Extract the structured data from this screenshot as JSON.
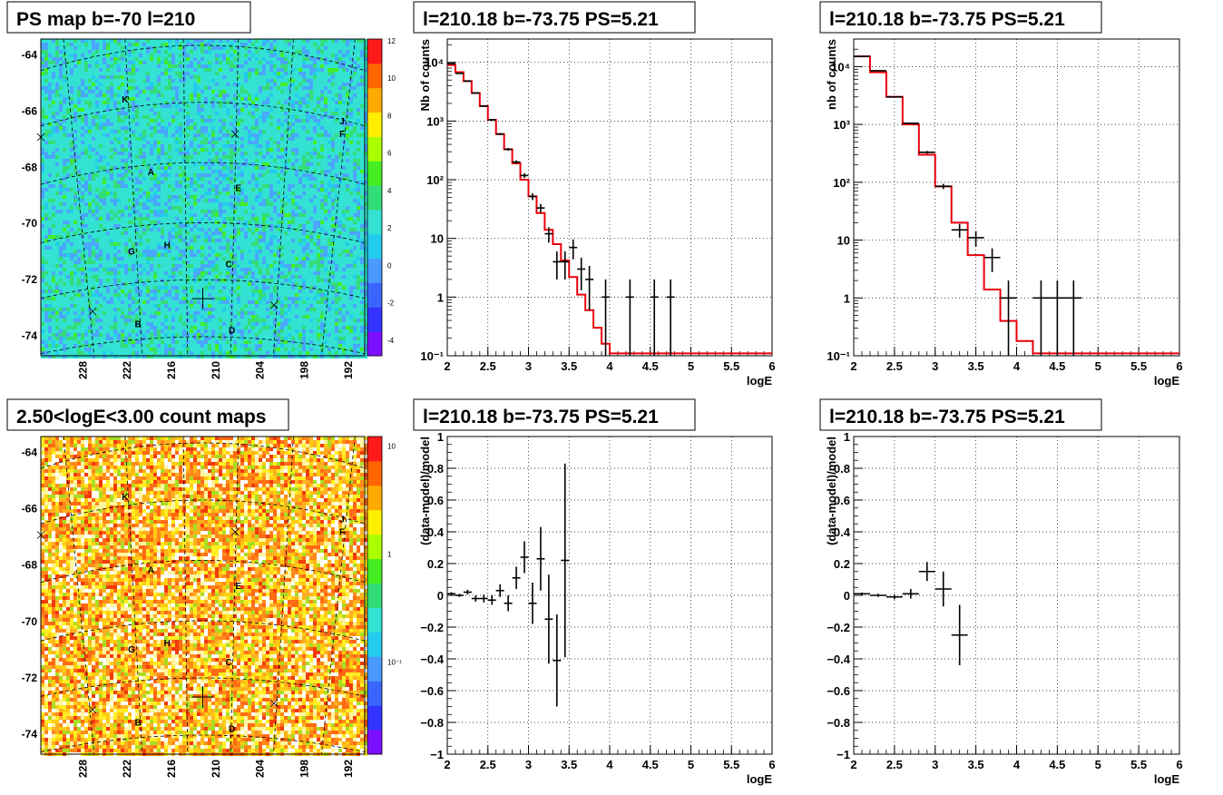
{
  "colors": {
    "model_line": "#e8000b",
    "data_marker": "#000000",
    "background": "#ffffff"
  },
  "maps": [
    {
      "title": "PS map b=-70 l=210",
      "palette": "ps",
      "colorbar_ticks": [
        "12",
        "10",
        "8",
        "6",
        "4",
        "2",
        "0",
        "-2",
        "-4"
      ],
      "y_ticks": [
        "-64",
        "-66",
        "-68",
        "-70",
        "-72",
        "-74"
      ],
      "x_ticks": [
        "228",
        "222",
        "216",
        "210",
        "204",
        "198",
        "192"
      ]
    },
    {
      "title": "2.50<logE<3.00 count maps",
      "palette": "counts",
      "colorbar_ticks": [
        "10",
        "1",
        "10⁻¹"
      ],
      "y_ticks": [
        "-64",
        "-66",
        "-68",
        "-70",
        "-72",
        "-74"
      ],
      "x_ticks": [
        "228",
        "222",
        "216",
        "210",
        "204",
        "198",
        "192"
      ]
    }
  ],
  "map_source_labels": [
    "K",
    "J",
    "F",
    "A",
    "E",
    "G",
    "H",
    "C",
    "B",
    "D"
  ],
  "chart_data": [
    {
      "type": "line",
      "title": "l=210.18 b=-73.75 PS=5.21",
      "xlabel": "logE",
      "ylabel": "Nb of counts",
      "y_scale": "log",
      "xlim": [
        2,
        6
      ],
      "ylim": [
        0.1,
        25000
      ],
      "grid": true,
      "x_tick_labels": [
        "2",
        "2.5",
        "3",
        "3.5",
        "4",
        "4.5",
        "5",
        "5.5",
        "6"
      ],
      "y_tick_labels": [
        "10⁻¹",
        "1",
        "10",
        "10²",
        "10³",
        "10⁴"
      ],
      "model_step": {
        "edges": [
          2.0,
          2.1,
          2.2,
          2.3,
          2.4,
          2.5,
          2.6,
          2.7,
          2.8,
          2.9,
          3.0,
          3.1,
          3.2,
          3.3,
          3.4,
          3.5,
          3.6,
          3.7,
          3.8,
          3.9,
          4.0,
          4.1,
          6.0
        ],
        "values": [
          9000,
          6800,
          4800,
          3000,
          1800,
          1050,
          600,
          330,
          190,
          100,
          52,
          27,
          14,
          8,
          4.2,
          2.2,
          1.1,
          0.6,
          0.3,
          0.16,
          0.11,
          0.11
        ]
      },
      "points": [
        {
          "x": 2.05,
          "y": 9500,
          "xerr": 0.05,
          "yerr_lo": 100,
          "yerr_hi": 100
        },
        {
          "x": 2.15,
          "y": 6500,
          "xerr": 0.05,
          "yerr_lo": 80,
          "yerr_hi": 80
        },
        {
          "x": 2.25,
          "y": 4800,
          "xerr": 0.05,
          "yerr_lo": 70,
          "yerr_hi": 70
        },
        {
          "x": 2.35,
          "y": 3000,
          "xerr": 0.05,
          "yerr_lo": 55,
          "yerr_hi": 55
        },
        {
          "x": 2.45,
          "y": 1800,
          "xerr": 0.05,
          "yerr_lo": 42,
          "yerr_hi": 42
        },
        {
          "x": 2.55,
          "y": 1050,
          "xerr": 0.05,
          "yerr_lo": 32,
          "yerr_hi": 32
        },
        {
          "x": 2.65,
          "y": 600,
          "xerr": 0.05,
          "yerr_lo": 24,
          "yerr_hi": 24
        },
        {
          "x": 2.75,
          "y": 330,
          "xerr": 0.05,
          "yerr_lo": 18,
          "yerr_hi": 18
        },
        {
          "x": 2.85,
          "y": 200,
          "xerr": 0.05,
          "yerr_lo": 14,
          "yerr_hi": 14
        },
        {
          "x": 2.95,
          "y": 118,
          "xerr": 0.05,
          "yerr_lo": 11,
          "yerr_hi": 11
        },
        {
          "x": 3.05,
          "y": 52,
          "xerr": 0.05,
          "yerr_lo": 7,
          "yerr_hi": 7
        },
        {
          "x": 3.15,
          "y": 33,
          "xerr": 0.05,
          "yerr_lo": 5.7,
          "yerr_hi": 5.7
        },
        {
          "x": 3.25,
          "y": 12,
          "xerr": 0.05,
          "yerr_lo": 3.5,
          "yerr_hi": 3.5
        },
        {
          "x": 3.35,
          "y": 4,
          "xerr": 0.05,
          "yerr_lo": 2,
          "yerr_hi": 2
        },
        {
          "x": 3.45,
          "y": 4,
          "xerr": 0.05,
          "yerr_lo": 2,
          "yerr_hi": 2
        },
        {
          "x": 3.55,
          "y": 7,
          "xerr": 0.05,
          "yerr_lo": 2.6,
          "yerr_hi": 2.6
        },
        {
          "x": 3.65,
          "y": 3,
          "xerr": 0.05,
          "yerr_lo": 1.7,
          "yerr_hi": 1.7
        },
        {
          "x": 3.75,
          "y": 2,
          "xerr": 0.05,
          "yerr_lo": 1.4,
          "yerr_hi": 1.4
        },
        {
          "x": 3.95,
          "y": 1,
          "xerr": 0.05,
          "yerr_lo": 0.9,
          "yerr_hi": 1
        },
        {
          "x": 4.25,
          "y": 1,
          "xerr": 0.05,
          "yerr_lo": 0.9,
          "yerr_hi": 1
        },
        {
          "x": 4.55,
          "y": 1,
          "xerr": 0.05,
          "yerr_lo": 0.9,
          "yerr_hi": 1
        },
        {
          "x": 4.75,
          "y": 1,
          "xerr": 0.05,
          "yerr_lo": 0.9,
          "yerr_hi": 1
        }
      ]
    },
    {
      "type": "line",
      "title": "l=210.18 b=-73.75 PS=5.21",
      "xlabel": "logE",
      "ylabel": "nb of counts",
      "y_scale": "log",
      "xlim": [
        2,
        6
      ],
      "ylim": [
        0.1,
        30000
      ],
      "grid": true,
      "x_tick_labels": [
        "2",
        "2.5",
        "3",
        "3.5",
        "4",
        "4.5",
        "5",
        "5.5",
        "6"
      ],
      "y_tick_labels": [
        "10⁻¹",
        "1",
        "10",
        "10²",
        "10³",
        "10⁴"
      ],
      "model_step": {
        "edges": [
          2.0,
          2.2,
          2.4,
          2.6,
          2.8,
          3.0,
          3.2,
          3.4,
          3.6,
          3.8,
          4.0,
          4.2,
          6.0
        ],
        "values": [
          15000,
          8000,
          3000,
          1000,
          300,
          85,
          20,
          5.5,
          1.4,
          0.4,
          0.18,
          0.11
        ]
      },
      "points": [
        {
          "x": 2.1,
          "y": 15000,
          "xerr": 0.1,
          "yerr_lo": 120,
          "yerr_hi": 120
        },
        {
          "x": 2.3,
          "y": 8500,
          "xerr": 0.1,
          "yerr_lo": 92,
          "yerr_hi": 92
        },
        {
          "x": 2.5,
          "y": 3000,
          "xerr": 0.1,
          "yerr_lo": 55,
          "yerr_hi": 55
        },
        {
          "x": 2.7,
          "y": 1050,
          "xerr": 0.1,
          "yerr_lo": 32,
          "yerr_hi": 32
        },
        {
          "x": 2.9,
          "y": 330,
          "xerr": 0.1,
          "yerr_lo": 18,
          "yerr_hi": 18
        },
        {
          "x": 3.1,
          "y": 85,
          "xerr": 0.1,
          "yerr_lo": 9,
          "yerr_hi": 9
        },
        {
          "x": 3.3,
          "y": 15,
          "xerr": 0.1,
          "yerr_lo": 4,
          "yerr_hi": 4
        },
        {
          "x": 3.5,
          "y": 11,
          "xerr": 0.1,
          "yerr_lo": 3.3,
          "yerr_hi": 3.3
        },
        {
          "x": 3.7,
          "y": 5,
          "xerr": 0.1,
          "yerr_lo": 2.2,
          "yerr_hi": 2.2
        },
        {
          "x": 3.9,
          "y": 1,
          "xerr": 0.1,
          "yerr_lo": 0.9,
          "yerr_hi": 1
        },
        {
          "x": 4.3,
          "y": 1,
          "xerr": 0.1,
          "yerr_lo": 0.9,
          "yerr_hi": 1
        },
        {
          "x": 4.5,
          "y": 1,
          "xerr": 0.1,
          "yerr_lo": 0.9,
          "yerr_hi": 1
        },
        {
          "x": 4.7,
          "y": 1,
          "xerr": 0.1,
          "yerr_lo": 0.9,
          "yerr_hi": 1
        }
      ]
    },
    {
      "type": "scatter",
      "title": "l=210.18 b=-73.75 PS=5.21",
      "xlabel": "logE",
      "ylabel": "(data-model)/model",
      "y_scale": "linear",
      "xlim": [
        2,
        6
      ],
      "ylim": [
        -1,
        1
      ],
      "grid": true,
      "x_tick_labels": [
        "2",
        "2.5",
        "3",
        "3.5",
        "4",
        "4.5",
        "5",
        "5.5",
        "6"
      ],
      "y_tick_labels": [
        "−1",
        "−0.8",
        "−0.6",
        "−0.4",
        "−0.2",
        "0",
        "0.2",
        "0.4",
        "0.6",
        "0.8",
        "1"
      ],
      "points": [
        {
          "x": 2.05,
          "y": 0.01,
          "xerr": 0.05,
          "yerr": 0.01
        },
        {
          "x": 2.15,
          "y": 0.0,
          "xerr": 0.05,
          "yerr": 0.01
        },
        {
          "x": 2.25,
          "y": 0.02,
          "xerr": 0.05,
          "yerr": 0.015
        },
        {
          "x": 2.35,
          "y": -0.02,
          "xerr": 0.05,
          "yerr": 0.02
        },
        {
          "x": 2.45,
          "y": -0.02,
          "xerr": 0.05,
          "yerr": 0.025
        },
        {
          "x": 2.55,
          "y": -0.03,
          "xerr": 0.05,
          "yerr": 0.03
        },
        {
          "x": 2.65,
          "y": 0.03,
          "xerr": 0.05,
          "yerr": 0.04
        },
        {
          "x": 2.75,
          "y": -0.05,
          "xerr": 0.05,
          "yerr": 0.05
        },
        {
          "x": 2.85,
          "y": 0.11,
          "xerr": 0.05,
          "yerr": 0.07
        },
        {
          "x": 2.95,
          "y": 0.24,
          "xerr": 0.05,
          "yerr": 0.1
        },
        {
          "x": 3.05,
          "y": -0.05,
          "xerr": 0.05,
          "yerr": 0.13
        },
        {
          "x": 3.15,
          "y": 0.23,
          "xerr": 0.05,
          "yerr": 0.2
        },
        {
          "x": 3.25,
          "y": -0.15,
          "xerr": 0.05,
          "yerr": 0.28
        },
        {
          "x": 3.35,
          "y": -0.41,
          "xerr": 0.05,
          "yerr": 0.29
        },
        {
          "x": 3.45,
          "y": 0.22,
          "xerr": 0.05,
          "yerr": 0.61
        }
      ]
    },
    {
      "type": "scatter",
      "title": "l=210.18 b=-73.75 PS=5.21",
      "xlabel": "logE",
      "ylabel": "(data-model)/model",
      "y_scale": "linear",
      "xlim": [
        2,
        6
      ],
      "ylim": [
        -1,
        1
      ],
      "grid": true,
      "x_tick_labels": [
        "2",
        "2.5",
        "3",
        "3.5",
        "4",
        "4.5",
        "5",
        "5.5",
        "6"
      ],
      "y_tick_labels": [
        "−1",
        "−0.8",
        "−0.6",
        "−0.4",
        "−0.2",
        "0",
        "0.2",
        "0.4",
        "0.6",
        "0.8",
        "1"
      ],
      "points": [
        {
          "x": 2.1,
          "y": 0.01,
          "xerr": 0.1,
          "yerr": 0.008
        },
        {
          "x": 2.3,
          "y": 0.0,
          "xerr": 0.1,
          "yerr": 0.01
        },
        {
          "x": 2.5,
          "y": -0.01,
          "xerr": 0.1,
          "yerr": 0.015
        },
        {
          "x": 2.7,
          "y": 0.01,
          "xerr": 0.1,
          "yerr": 0.03
        },
        {
          "x": 2.9,
          "y": 0.15,
          "xerr": 0.1,
          "yerr": 0.06
        },
        {
          "x": 3.1,
          "y": 0.04,
          "xerr": 0.1,
          "yerr": 0.11
        },
        {
          "x": 3.3,
          "y": -0.25,
          "xerr": 0.1,
          "yerr": 0.19
        }
      ]
    }
  ]
}
